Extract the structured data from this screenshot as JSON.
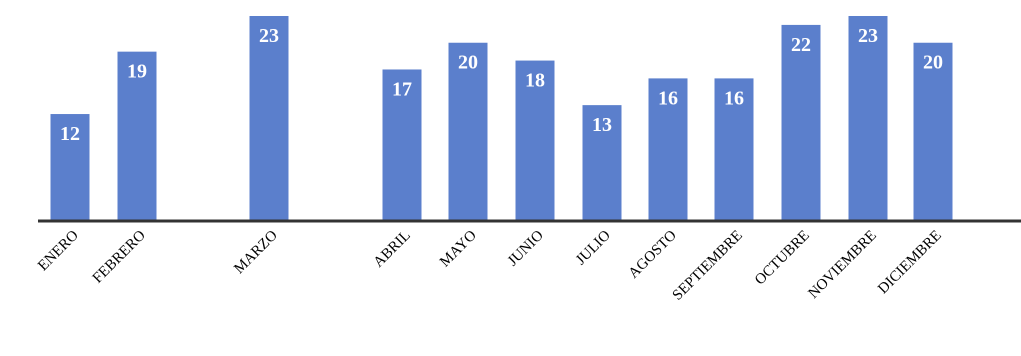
{
  "chart_data": {
    "type": "bar",
    "title": "",
    "xlabel": "",
    "ylabel": "",
    "categories": [
      "ENERO",
      "FEBRERO",
      "MARZO",
      "ABRIL",
      "MAYO",
      "JUNIO",
      "JULIO",
      "AGOSTO",
      "SEPTIEMBRE",
      "OCTUBRE",
      "NOVIEMBRE",
      "DICIEMBRE"
    ],
    "values": [
      12,
      19,
      23,
      17,
      20,
      18,
      13,
      16,
      16,
      22,
      23,
      20
    ],
    "ylim": [
      0,
      23
    ],
    "grid": false,
    "legend": "none",
    "data_labels": true,
    "colors": {
      "bar": "#5b7fcc",
      "data_label": "#ffffff",
      "axis": "#333333"
    }
  }
}
